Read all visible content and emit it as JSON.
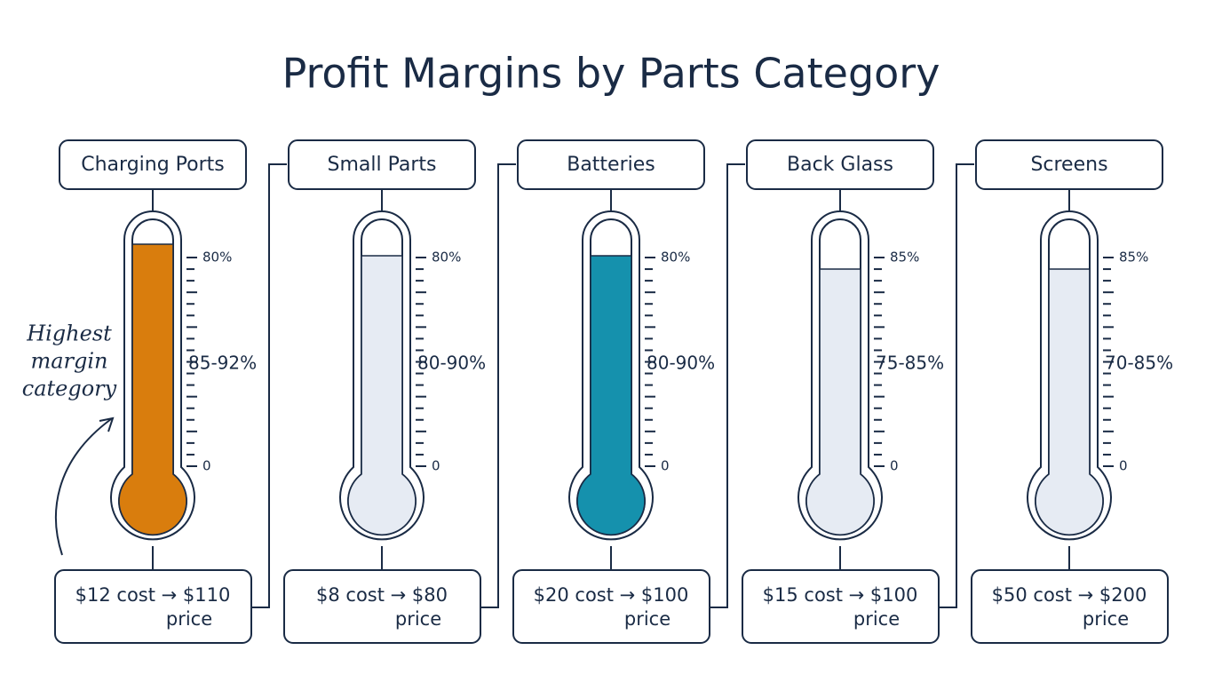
{
  "title": "Profit Margins by Parts Category",
  "annotation": [
    "Highest",
    "margin",
    "category"
  ],
  "items": [
    {
      "name": "Charging Ports",
      "top_tick": "80%",
      "bottom_tick": "0",
      "range": "85-92%",
      "cost": "$12 cost → $110",
      "price": "price",
      "fill_color": "#d97d0d"
    },
    {
      "name": "Small Parts",
      "top_tick": "80%",
      "bottom_tick": "0",
      "range": "80-90%",
      "cost": "$8 cost → $80",
      "price": "price",
      "fill_color": "#e6ebf3"
    },
    {
      "name": "Batteries",
      "top_tick": "80%",
      "bottom_tick": "0",
      "range": "80-90%",
      "cost": "$20 cost → $100",
      "price": "price",
      "fill_color": "#1591ad"
    },
    {
      "name": "Back Glass",
      "top_tick": "85%",
      "bottom_tick": "0",
      "range": "75-85%",
      "cost": "$15 cost → $100",
      "price": "price",
      "fill_color": "#e6ebf3"
    },
    {
      "name": "Screens",
      "top_tick": "85%",
      "bottom_tick": "0",
      "range": "70-85%",
      "cost": "$50 cost → $200",
      "price": "price",
      "fill_color": "#e6ebf3"
    }
  ]
}
